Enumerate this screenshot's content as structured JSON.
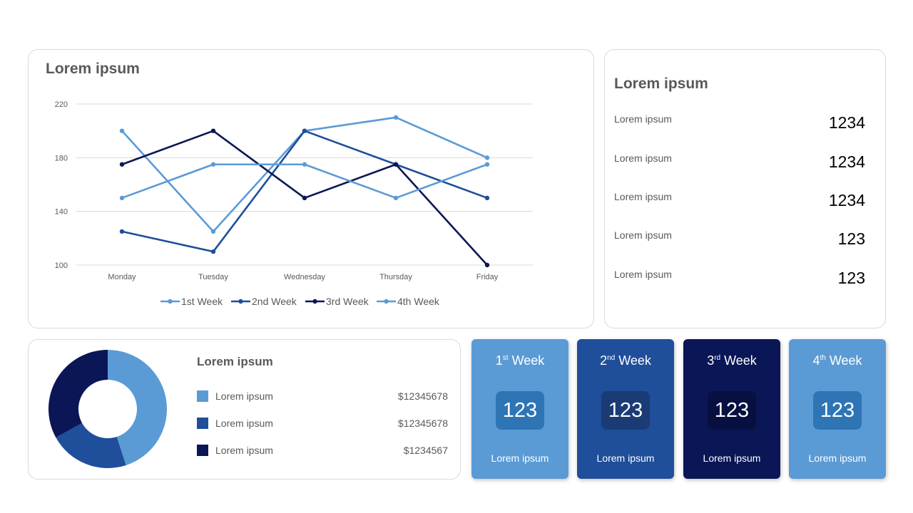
{
  "line_card": {
    "title": "Lorem ipsum"
  },
  "chart_data": {
    "type": "line",
    "categories": [
      "Monday",
      "Tuesday",
      "Wednesday",
      "Thursday",
      "Friday"
    ],
    "ylim": [
      100,
      220
    ],
    "yticks": [
      100,
      140,
      180,
      220
    ],
    "grid": true,
    "legend_position": "bottom",
    "series": [
      {
        "name": "1st Week",
        "color": "#5B9BD5",
        "values": [
          200,
          125,
          200,
          210,
          180
        ]
      },
      {
        "name": "2nd Week",
        "color": "#1F4E9A",
        "values": [
          125,
          110,
          200,
          175,
          150
        ]
      },
      {
        "name": "3rd Week",
        "color": "#0A1655",
        "values": [
          175,
          200,
          150,
          175,
          100
        ]
      },
      {
        "name": "4th Week",
        "color": "#5B9BD5",
        "values": [
          150,
          175,
          175,
          150,
          175
        ]
      }
    ]
  },
  "list_card": {
    "title": "Lorem ipsum",
    "rows": [
      {
        "label": "Lorem ipsum",
        "value": "1234"
      },
      {
        "label": "Lorem ipsum",
        "value": "1234"
      },
      {
        "label": "Lorem ipsum",
        "value": "1234"
      },
      {
        "label": "Lorem ipsum",
        "value": "123"
      },
      {
        "label": "Lorem ipsum",
        "value": "123"
      }
    ]
  },
  "donut_card": {
    "title": "Lorem ipsum",
    "slices": [
      {
        "label": "Lorem ipsum",
        "value_text": "$12345678",
        "color": "#5B9BD5",
        "share": 0.45
      },
      {
        "label": "Lorem ipsum",
        "value_text": "$12345678",
        "color": "#1F4E9A",
        "share": 0.22
      },
      {
        "label": "Lorem ipsum",
        "value_text": "$1234567",
        "color": "#0A1655",
        "share": 0.33
      }
    ]
  },
  "week_cards": [
    {
      "num": "1",
      "suffix": "st",
      "word": "Week",
      "value": "123",
      "footer": "Lorem ipsum",
      "bg": "#5B9BD5",
      "box": "#2E75B6"
    },
    {
      "num": "2",
      "suffix": "nd",
      "word": "Week",
      "value": "123",
      "footer": "Lorem ipsum",
      "bg": "#1F4E9A",
      "box": "#1A3B75"
    },
    {
      "num": "3",
      "suffix": "rd",
      "word": "Week",
      "value": "123",
      "footer": "Lorem ipsum",
      "bg": "#0A1655",
      "box": "#071040"
    },
    {
      "num": "4",
      "suffix": "th",
      "word": "Week",
      "value": "123",
      "footer": "Lorem ipsum",
      "bg": "#5B9BD5",
      "box": "#2E75B6"
    }
  ]
}
